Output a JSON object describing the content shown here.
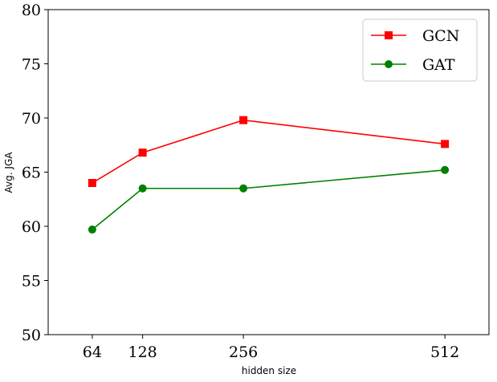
{
  "chart_data": {
    "type": "line",
    "xlabel": "hidden size",
    "ylabel": "Avg. JGA",
    "x": [
      64,
      128,
      256,
      512
    ],
    "x_tick_labels": [
      "64",
      "128",
      "256",
      "512"
    ],
    "xlim": [
      8,
      568
    ],
    "ylim": [
      50,
      80
    ],
    "y_ticks": [
      50,
      55,
      60,
      65,
      70,
      75,
      80
    ],
    "grid": false,
    "legend_position": "top-right",
    "series": [
      {
        "name": "GCN",
        "values": [
          64.0,
          66.8,
          69.8,
          67.6
        ],
        "color": "#ff0000",
        "marker": "square"
      },
      {
        "name": "GAT",
        "values": [
          59.7,
          63.5,
          63.5,
          65.2
        ],
        "color": "#008000",
        "marker": "circle"
      }
    ]
  }
}
